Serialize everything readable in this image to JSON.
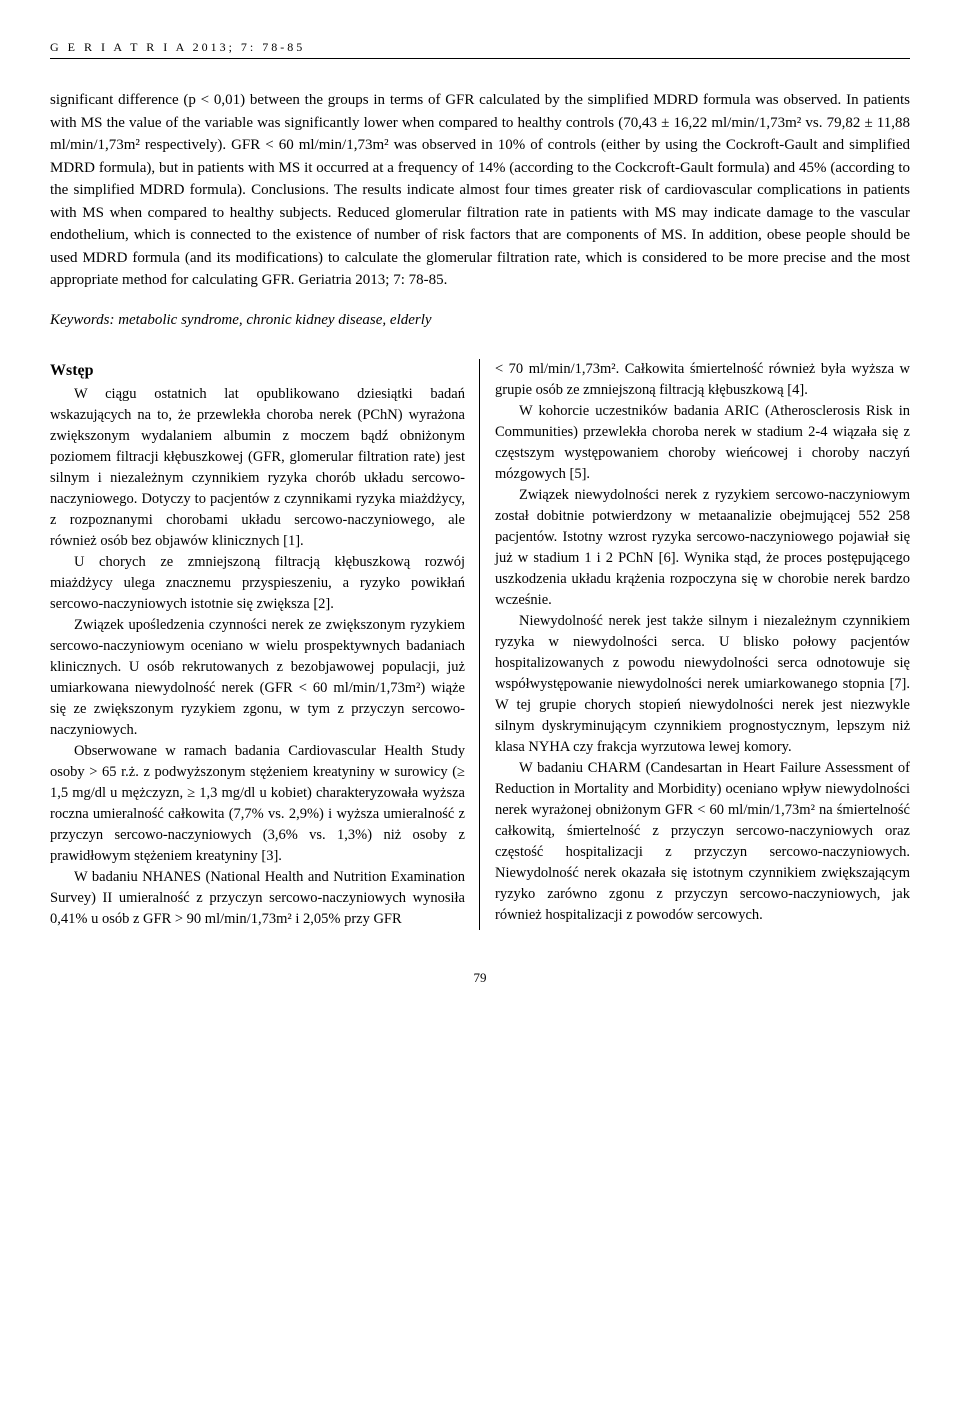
{
  "header": "G E R I A T R I A  2013; 7: 78-85",
  "abstract": "significant difference (p < 0,01) between the groups in terms of GFR calculated by the simplified MDRD formula was observed. In patients with MS the value of the variable was significantly lower when compared to healthy controls (70,43 ± 16,22 ml/min/1,73m² vs. 79,82 ± 11,88 ml/min/1,73m² respectively). GFR < 60 ml/min/1,73m² was observed in 10% of controls (either by using the Cockroft-Gault and simplified MDRD formula), but in patients with MS it occurred at a frequency of 14% (according to the Cockcroft-Gault formula) and 45% (according to the simplified MDRD formula). Conclusions. The results indicate almost four times greater risk of cardiovascular complications in patients with MS when compared to healthy subjects. Reduced glomerular filtration rate in patients with MS may indicate damage to the vascular endothelium, which is connected to the existence of number of risk factors that are components of MS. In addition, obese people should be used MDRD formula (and its modifications) to calculate the glomerular filtration rate, which is considered to be more precise and the most appropriate method for calculating GFR. Geriatria 2013; 7: 78-85.",
  "keywords": "Keywords: metabolic syndrome, chronic kidney disease, elderly",
  "section_title": "Wstęp",
  "left_paragraphs": [
    "W ciągu ostatnich lat opublikowano dziesiątki badań wskazujących na to, że przewlekła choroba nerek (PChN) wyrażona zwiększonym wydalaniem albumin z moczem bądź obniżonym poziomem filtracji kłębuszkowej (GFR, glomerular filtration rate) jest silnym i niezależnym czynnikiem ryzyka chorób układu sercowo-naczyniowego. Dotyczy to pacjentów z czynnikami ryzyka miażdżycy, z rozpoznanymi chorobami układu sercowo-naczyniowego, ale również osób bez objawów klinicznych [1].",
    "U chorych ze zmniejszoną filtracją kłębuszkową rozwój miażdżycy ulega znacznemu przyspieszeniu, a ryzyko powikłań sercowo-naczyniowych istotnie się zwiększa [2].",
    "Związek upośledzenia czynności nerek ze zwiększonym ryzykiem sercowo-naczyniowym oceniano w wielu prospektywnych badaniach klinicznych. U osób rekrutowanych z bezobjawowej populacji, już umiarkowana niewydolność nerek (GFR < 60 ml/min/1,73m²) wiąże się ze zwiększonym ryzykiem zgonu, w tym z przyczyn sercowo-naczyniowych.",
    "Obserwowane w ramach badania Cardiovascular Health Study osoby > 65 r.ż. z podwyższonym stężeniem kreatyniny w surowicy (≥ 1,5 mg/dl u mężczyzn, ≥ 1,3 mg/dl u kobiet) charakteryzowała wyższa roczna umieralność całkowita (7,7% vs. 2,9%) i wyższa umieralność z przyczyn sercowo-naczyniowych (3,6% vs. 1,3%) niż osoby z prawidłowym stężeniem kreatyniny [3].",
    "W badaniu NHANES (National Health and Nutrition Examination Survey) II umieralność z przyczyn sercowo-naczyniowych wynosiła 0,41% u osób z GFR > 90 ml/min/1,73m² i 2,05% przy GFR"
  ],
  "right_paragraphs": [
    "< 70 ml/min/1,73m². Całkowita śmiertelność również była wyższa w grupie osób ze zmniejszoną filtracją kłębuszkową [4].",
    "W kohorcie uczestników badania ARIC (Atherosclerosis Risk in Communities) przewlekła choroba nerek w stadium 2-4 wiązała się z częstszym występowaniem choroby wieńcowej i choroby naczyń mózgowych [5].",
    "Związek niewydolności nerek z ryzykiem sercowo-naczyniowym został dobitnie potwierdzony w metaanalizie obejmującej 552 258 pacjentów. Istotny wzrost ryzyka sercowo-naczyniowego pojawiał się już w stadium 1 i 2 PChN [6]. Wynika stąd, że proces postępującego uszkodzenia układu krążenia rozpoczyna się w chorobie nerek bardzo wcześnie.",
    "Niewydolność nerek jest także silnym i niezależnym czynnikiem ryzyka w niewydolności serca. U blisko połowy pacjentów hospitalizowanych z powodu niewydolności serca odnotowuje się współwystępowanie niewydolności nerek umiarkowanego stopnia [7]. W tej grupie chorych stopień niewydolności nerek jest niezwykle silnym dyskryminującym czynnikiem prognostycznym, lepszym niż klasa NYHA czy frakcja wyrzutowa lewej komory.",
    "W badaniu CHARM (Candesartan in Heart Failure Assessment of Reduction in Mortality and Morbidity) oceniano wpływ niewydolności nerek wyrażonej obniżonym GFR < 60 ml/min/1,73m² na śmiertelność całkowitą, śmiertelność z przyczyn sercowo-naczyniowych oraz częstość hospitalizacji z przyczyn sercowo-naczyniowych. Niewydolność nerek okazała się istotnym czynnikiem zwiększającym ryzyko zarówno zgonu z przyczyn sercowo-naczyniowych, jak również hospitalizacji z powodów sercowych."
  ],
  "page_number": "79"
}
